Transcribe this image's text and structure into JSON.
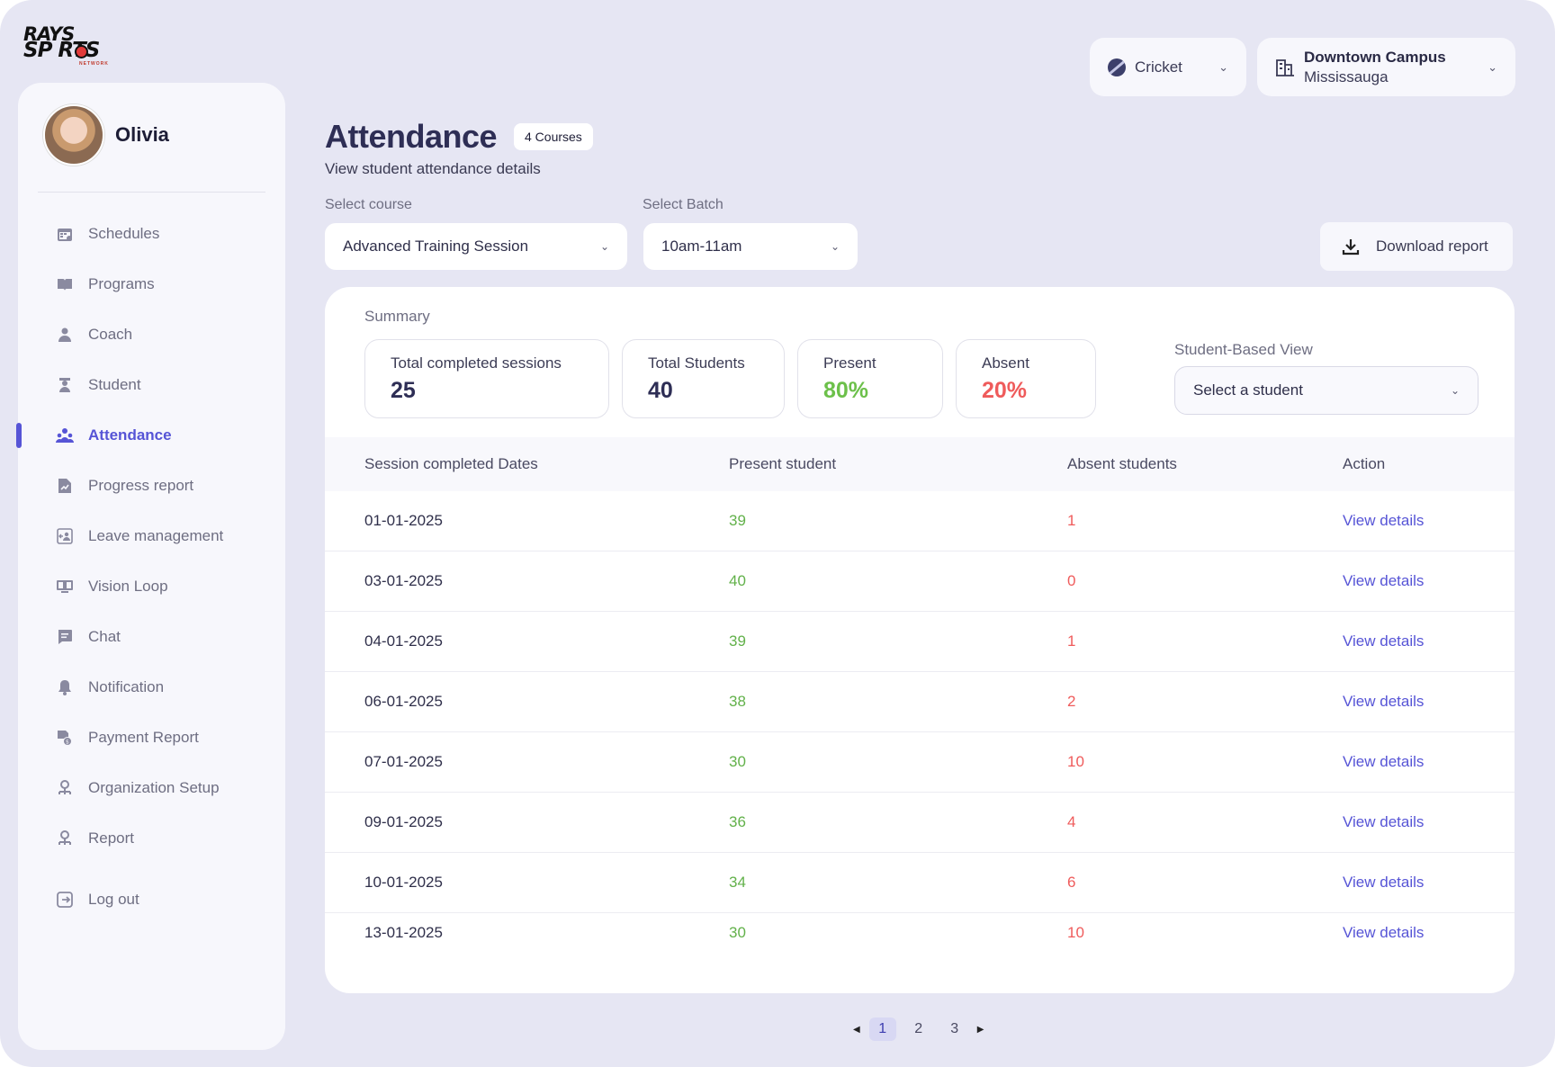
{
  "brand": {
    "line1": "RAYS",
    "line2": "SP  RTS",
    "tagline": "NETWORK"
  },
  "user": {
    "name": "Olivia"
  },
  "nav": [
    {
      "label": "Schedules",
      "icon": "calendar-icon"
    },
    {
      "label": "Programs",
      "icon": "book-icon"
    },
    {
      "label": "Coach",
      "icon": "coach-icon"
    },
    {
      "label": "Student",
      "icon": "student-icon"
    },
    {
      "label": "Attendance",
      "icon": "attendance-icon",
      "active": true
    },
    {
      "label": "Progress report",
      "icon": "report-icon"
    },
    {
      "label": "Leave management",
      "icon": "leave-icon"
    },
    {
      "label": "Vision Loop",
      "icon": "vision-icon"
    },
    {
      "label": "Chat",
      "icon": "chat-icon"
    },
    {
      "label": "Notification",
      "icon": "bell-icon"
    },
    {
      "label": "Payment Report",
      "icon": "payment-icon"
    },
    {
      "label": "Organization Setup",
      "icon": "org-icon"
    },
    {
      "label": "Report",
      "icon": "org-report-icon"
    },
    {
      "label": "Log out",
      "icon": "logout-icon"
    }
  ],
  "top": {
    "sport": "Cricket",
    "campus_name": "Downtown Campus",
    "campus_city": "Mississauga"
  },
  "header": {
    "title": "Attendance",
    "badge": "4 Courses",
    "subtitle": "View student attendance details"
  },
  "filters": {
    "course_label": "Select course",
    "course_value": "Advanced Training Session",
    "batch_label": "Select Batch",
    "batch_value": "10am-11am",
    "download": "Download report"
  },
  "summary": {
    "label": "Summary",
    "stats": [
      {
        "label": "Total completed sessions",
        "value": "25"
      },
      {
        "label": "Total Students",
        "value": "40"
      },
      {
        "label": "Present",
        "value": "80%"
      },
      {
        "label": "Absent",
        "value": "20%"
      }
    ],
    "student_view_label": "Student-Based View",
    "student_view_placeholder": "Select a student"
  },
  "table": {
    "headers": [
      "Session completed Dates",
      "Present student",
      "Absent students",
      "Action"
    ],
    "rows": [
      {
        "date": "01-01-2025",
        "present": "39",
        "absent": "1",
        "action": "View details"
      },
      {
        "date": "03-01-2025",
        "present": "40",
        "absent": "0",
        "action": "View details"
      },
      {
        "date": "04-01-2025",
        "present": "39",
        "absent": "1",
        "action": "View details"
      },
      {
        "date": "06-01-2025",
        "present": "38",
        "absent": "2",
        "action": "View details"
      },
      {
        "date": "07-01-2025",
        "present": "30",
        "absent": "10",
        "action": "View details"
      },
      {
        "date": "09-01-2025",
        "present": "36",
        "absent": "4",
        "action": "View details"
      },
      {
        "date": "10-01-2025",
        "present": "34",
        "absent": "6",
        "action": "View details"
      },
      {
        "date": "13-01-2025",
        "present": "30",
        "absent": "10",
        "action": "View details"
      }
    ]
  },
  "pagination": {
    "pages": [
      "1",
      "2",
      "3"
    ],
    "current": "1"
  }
}
